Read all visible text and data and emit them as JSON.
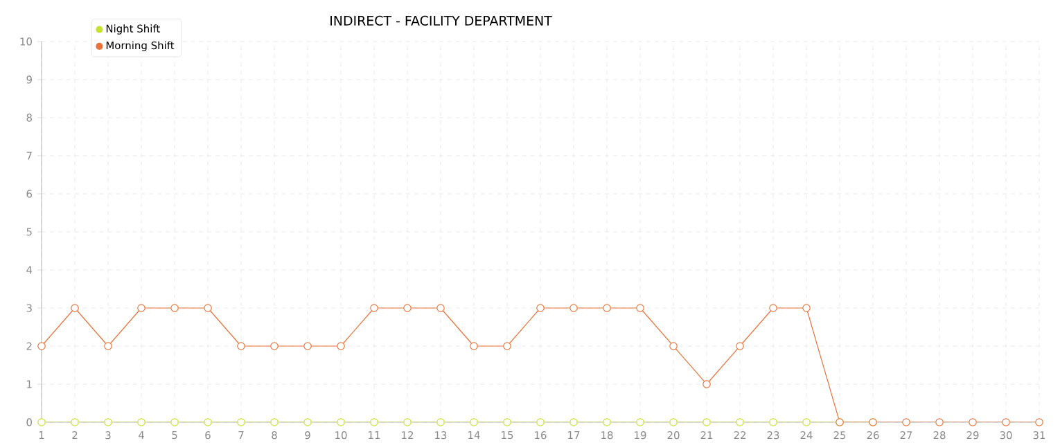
{
  "chart_data": {
    "type": "line",
    "title": "INDIRECT - FACILITY DEPARTMENT",
    "x": [
      1,
      2,
      3,
      4,
      5,
      6,
      7,
      8,
      9,
      10,
      11,
      12,
      13,
      14,
      15,
      16,
      17,
      18,
      19,
      20,
      21,
      22,
      23,
      24,
      25,
      26,
      27,
      28,
      29,
      30,
      31
    ],
    "series": [
      {
        "name": "Night Shift",
        "color": "#c8e030",
        "values": [
          0,
          0,
          0,
          0,
          0,
          0,
          0,
          0,
          0,
          0,
          0,
          0,
          0,
          0,
          0,
          0,
          0,
          0,
          0,
          0,
          0,
          0,
          0,
          0,
          0,
          0,
          null,
          null,
          null,
          null,
          null
        ]
      },
      {
        "name": "Morning Shift",
        "color": "#e8733a",
        "values": [
          2,
          3,
          2,
          3,
          3,
          3,
          2,
          2,
          2,
          2,
          3,
          3,
          3,
          2,
          2,
          3,
          3,
          3,
          3,
          2,
          1,
          2,
          3,
          3,
          0,
          0,
          0,
          0,
          0,
          0,
          0
        ]
      }
    ],
    "xlim": [
      1,
      31
    ],
    "xticks": [
      1,
      2,
      3,
      4,
      5,
      6,
      7,
      8,
      9,
      10,
      11,
      12,
      13,
      14,
      15,
      16,
      17,
      18,
      19,
      20,
      21,
      22,
      23,
      24,
      25,
      26,
      27,
      28,
      29,
      30,
      31
    ],
    "ylim": [
      0,
      10
    ],
    "yticks": [
      0,
      1,
      2,
      3,
      4,
      5,
      6,
      7,
      8,
      9,
      10
    ],
    "grid": true,
    "legend": "top left",
    "marker": "circle",
    "line_style": "solid"
  }
}
